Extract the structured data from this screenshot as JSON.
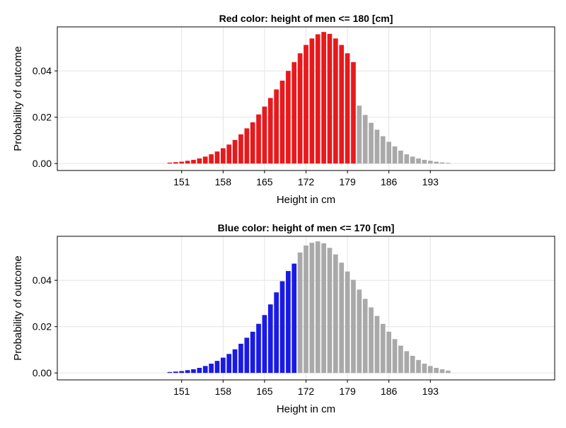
{
  "chart_data": [
    {
      "type": "bar",
      "title": "Red color: height of men <= 180 [cm]",
      "xlabel": "Height in cm",
      "ylabel": "Probability of outcome",
      "xlim": [
        130,
        214
      ],
      "ylim": [
        -0.003,
        0.059
      ],
      "xticks": [
        "151",
        "158",
        "165",
        "172",
        "179",
        "186",
        "193"
      ],
      "yticks": [
        "0.00",
        "0.02",
        "0.04"
      ],
      "threshold": 180,
      "highlight_color": "#e8191c",
      "other_color": "#a9a9a9",
      "grid": true,
      "x": [
        149,
        150,
        151,
        152,
        153,
        154,
        155,
        156,
        157,
        158,
        159,
        160,
        161,
        162,
        163,
        164,
        165,
        166,
        167,
        168,
        169,
        170,
        171,
        172,
        173,
        174,
        175,
        176,
        177,
        178,
        179,
        180,
        181,
        182,
        183,
        184,
        185,
        186,
        187,
        188,
        189,
        190,
        191,
        192,
        193,
        194,
        195,
        196
      ],
      "values": [
        0.0004,
        0.0006,
        0.0008,
        0.0012,
        0.0016,
        0.0022,
        0.003,
        0.004,
        0.0052,
        0.0066,
        0.0082,
        0.0102,
        0.0126,
        0.0152,
        0.0178,
        0.0212,
        0.0246,
        0.0283,
        0.032,
        0.0358,
        0.04,
        0.0438,
        0.0476,
        0.0512,
        0.054,
        0.0558,
        0.0568,
        0.056,
        0.054,
        0.0512,
        0.0476,
        0.0438,
        0.025,
        0.021,
        0.0176,
        0.0146,
        0.0118,
        0.0094,
        0.0074,
        0.0056,
        0.004,
        0.003,
        0.0022,
        0.0016,
        0.0012,
        0.0008,
        0.0005,
        0.0003
      ]
    },
    {
      "type": "bar",
      "title": "Blue color: height of men <= 170 [cm]",
      "xlabel": "Height in cm",
      "ylabel": "Probability of outcome",
      "xlim": [
        130,
        214
      ],
      "ylim": [
        -0.003,
        0.059
      ],
      "xticks": [
        "151",
        "158",
        "165",
        "172",
        "179",
        "186",
        "193"
      ],
      "yticks": [
        "0.00",
        "0.02",
        "0.04"
      ],
      "threshold": 170,
      "highlight_color": "#1a1ae6",
      "other_color": "#a9a9a9",
      "grid": true,
      "x": [
        149,
        150,
        151,
        152,
        153,
        154,
        155,
        156,
        157,
        158,
        159,
        160,
        161,
        162,
        163,
        164,
        165,
        166,
        167,
        168,
        169,
        170,
        171,
        172,
        173,
        174,
        175,
        176,
        177,
        178,
        179,
        180,
        181,
        182,
        183,
        184,
        185,
        186,
        187,
        188,
        189,
        190,
        191,
        192,
        193,
        194,
        195,
        196
      ],
      "values": [
        0.0004,
        0.0006,
        0.0008,
        0.0012,
        0.0016,
        0.0022,
        0.003,
        0.004,
        0.0052,
        0.0066,
        0.0082,
        0.0102,
        0.0126,
        0.0152,
        0.0178,
        0.0212,
        0.025,
        0.0296,
        0.0348,
        0.0396,
        0.044,
        0.0472,
        0.052,
        0.055,
        0.0562,
        0.0568,
        0.056,
        0.054,
        0.0512,
        0.0476,
        0.0438,
        0.0402,
        0.036,
        0.032,
        0.0283,
        0.0246,
        0.0212,
        0.0178,
        0.0146,
        0.0118,
        0.0094,
        0.0074,
        0.0056,
        0.004,
        0.003,
        0.0022,
        0.0016,
        0.001
      ]
    }
  ]
}
